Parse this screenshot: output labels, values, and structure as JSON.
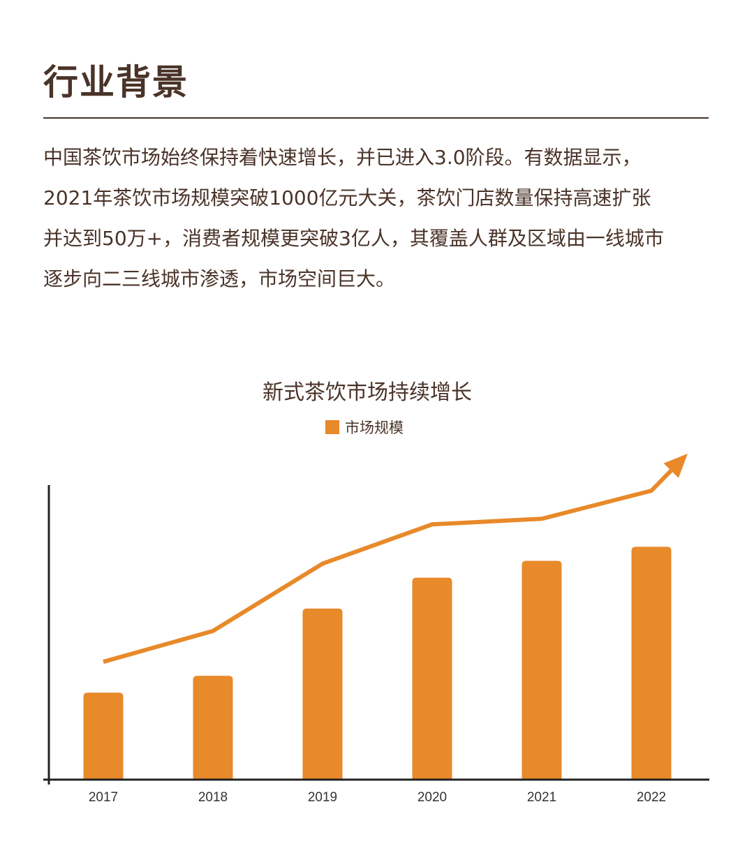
{
  "header": {
    "title": "行业背景"
  },
  "intro": {
    "lines": [
      "中国茶饮市场始终保持着快速增长，并已进入3.0阶段。有数据显示，",
      "2021年茶饮市场规模突破1000亿元大关，茶饮门店数量保持高速扩张",
      "并达到50万+，消费者规模更突破3亿人，其覆盖人群及区域由一线城市",
      "逐步向二三线城市渗透，市场空间巨大。"
    ]
  },
  "colors": {
    "accent": "#e8892a",
    "text": "#4a3328",
    "axis": "#222222"
  },
  "chart_data": {
    "type": "bar",
    "title": "新式茶饮市场持续增长",
    "categories": [
      "2017",
      "2018",
      "2019",
      "2020",
      "2021",
      "2022"
    ],
    "series": [
      {
        "name": "市场规模",
        "values": [
          31,
          37,
          61,
          72,
          78,
          83
        ]
      }
    ],
    "trend_line": [
      42,
      53,
      77,
      91,
      93,
      103
    ],
    "ylim": [
      0,
      105
    ],
    "legend": "top-center",
    "grid": false,
    "trend_arrow": true
  }
}
